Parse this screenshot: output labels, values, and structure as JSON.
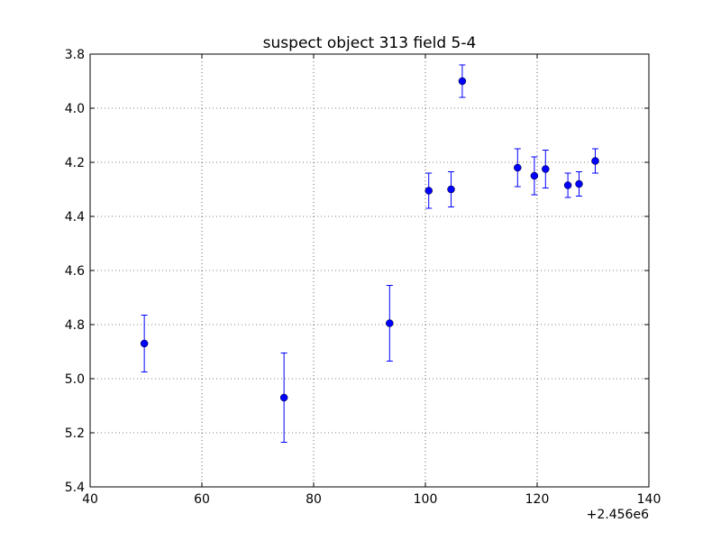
{
  "chart_data": {
    "type": "scatter",
    "title": "suspect object 313 field 5-4",
    "xlabel": "",
    "ylabel": "",
    "x_offset_label": "+2.456e6",
    "xlim": [
      40,
      140
    ],
    "ylim": [
      5.4,
      3.8
    ],
    "y_inverted": true,
    "grid": true,
    "x_ticks": [
      "40",
      "60",
      "80",
      "100",
      "120",
      "140"
    ],
    "y_ticks": [
      "3.8",
      "4.0",
      "4.2",
      "4.4",
      "4.6",
      "4.8",
      "5.0",
      "5.2",
      "5.4"
    ],
    "colors": {
      "series": "#0000ff",
      "grid": "#000000"
    },
    "series": [
      {
        "points": [
          {
            "x": 49.7,
            "y": 4.87,
            "err": 0.105
          },
          {
            "x": 74.7,
            "y": 5.07,
            "err": 0.165
          },
          {
            "x": 93.6,
            "y": 4.795,
            "err": 0.14
          },
          {
            "x": 100.6,
            "y": 4.305,
            "err": 0.065
          },
          {
            "x": 104.6,
            "y": 4.3,
            "err": 0.065
          },
          {
            "x": 106.6,
            "y": 3.9,
            "err": 0.06
          },
          {
            "x": 116.5,
            "y": 4.22,
            "err": 0.07
          },
          {
            "x": 119.5,
            "y": 4.25,
            "err": 0.07
          },
          {
            "x": 121.5,
            "y": 4.225,
            "err": 0.07
          },
          {
            "x": 125.5,
            "y": 4.285,
            "err": 0.045
          },
          {
            "x": 127.5,
            "y": 4.28,
            "err": 0.045
          },
          {
            "x": 130.4,
            "y": 4.195,
            "err": 0.045
          }
        ]
      }
    ]
  }
}
